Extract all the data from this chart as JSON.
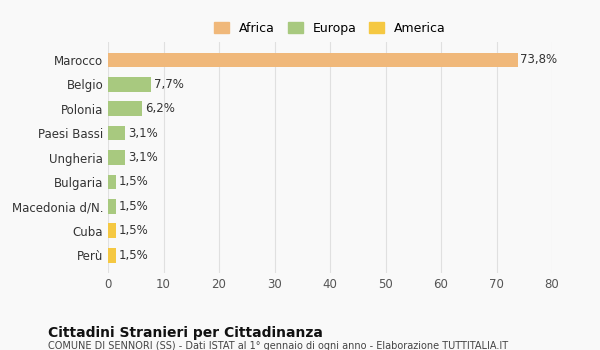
{
  "categories": [
    "Perù",
    "Cuba",
    "Macedonia d/N.",
    "Bulgaria",
    "Ungheria",
    "Paesi Bassi",
    "Polonia",
    "Belgio",
    "Marocco"
  ],
  "values": [
    1.5,
    1.5,
    1.5,
    1.5,
    3.1,
    3.1,
    6.2,
    7.7,
    73.8
  ],
  "labels": [
    "1,5%",
    "1,5%",
    "1,5%",
    "1,5%",
    "3,1%",
    "3,1%",
    "6,2%",
    "7,7%",
    "73,8%"
  ],
  "colors": [
    "#f5c842",
    "#f5c842",
    "#a8c97f",
    "#a8c97f",
    "#a8c97f",
    "#a8c97f",
    "#a8c97f",
    "#a8c97f",
    "#f0b87a"
  ],
  "legend": [
    {
      "label": "Africa",
      "color": "#f0b87a"
    },
    {
      "label": "Europa",
      "color": "#a8c97f"
    },
    {
      "label": "America",
      "color": "#f5c842"
    }
  ],
  "xlim": [
    0,
    80
  ],
  "xticks": [
    0,
    10,
    20,
    30,
    40,
    50,
    60,
    70,
    80
  ],
  "title": "Cittadini Stranieri per Cittadinanza",
  "subtitle": "COMUNE DI SENNORI (SS) - Dati ISTAT al 1° gennaio di ogni anno - Elaborazione TUTTITALIA.IT",
  "bg_color": "#f9f9f9",
  "grid_color": "#e0e0e0"
}
